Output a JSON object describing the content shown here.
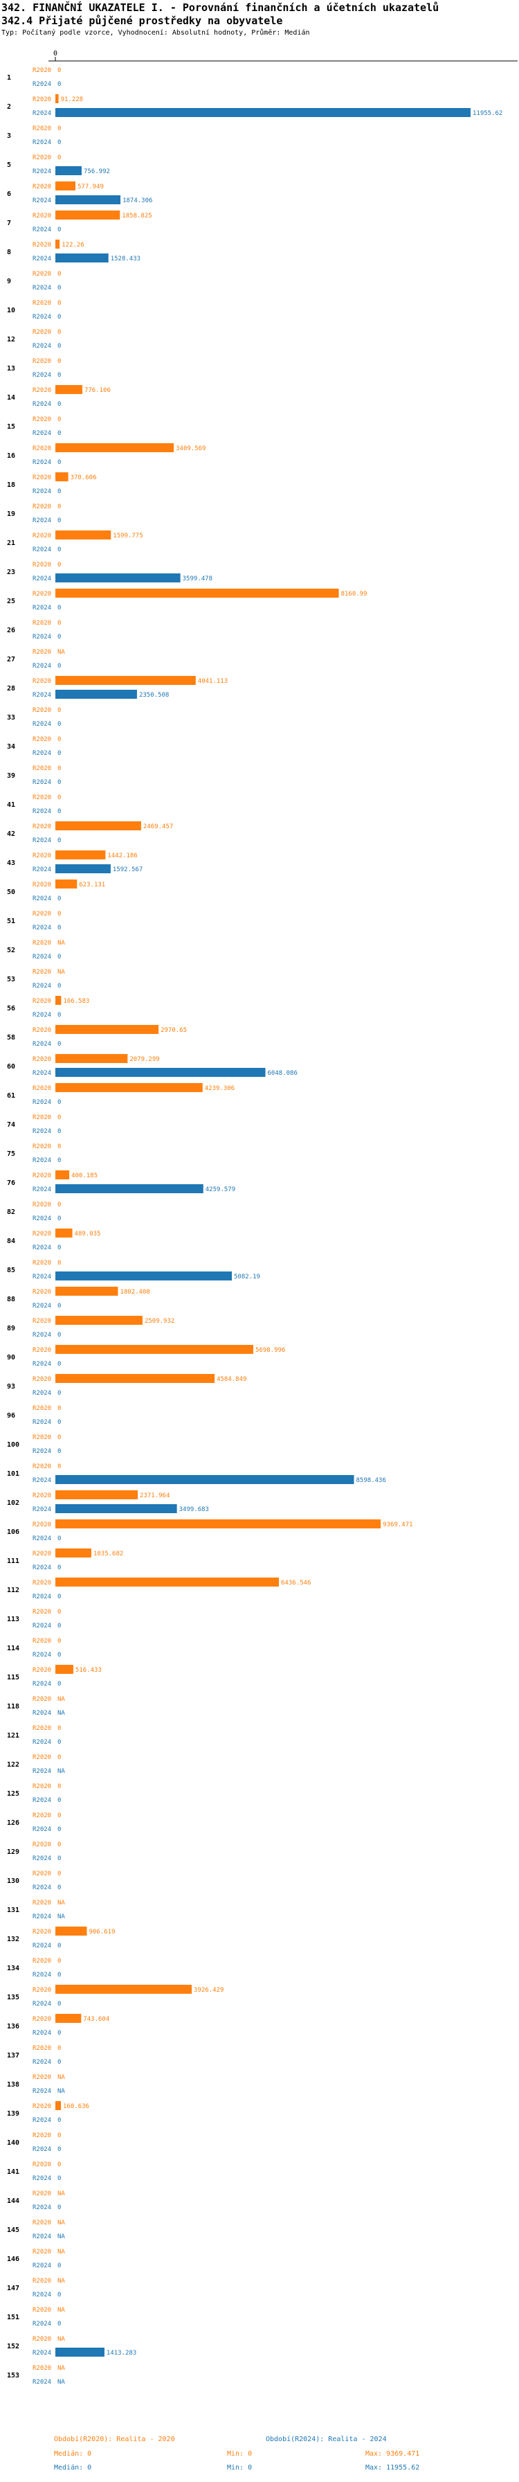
{
  "header": {
    "title": "342. FINANČNÍ UKAZATELE I. - Porovnání finančních a účetních ukazatelů",
    "subtitle": "342.4 Přijaté půjčené prostředky na obyvatele",
    "meta": "Typ: Počítaný podle vzorce, Vyhodnocení: Absolutní hodnoty, Průměr: Medián"
  },
  "colors": {
    "r2020": "#ff7f0e",
    "r2024": "#1f77b4"
  },
  "chart_data": {
    "type": "bar",
    "orientation": "horizontal",
    "x_axis_label": "0",
    "xlim": [
      0,
      11955.62
    ],
    "series_names": [
      "R2020",
      "R2024"
    ],
    "categories": [
      {
        "id": "1",
        "r2020": "0",
        "r2024": "0"
      },
      {
        "id": "2",
        "r2020": "91.228",
        "r2024": "11955.62"
      },
      {
        "id": "3",
        "r2020": "0",
        "r2024": "0"
      },
      {
        "id": "5",
        "r2020": "0",
        "r2024": "756.992"
      },
      {
        "id": "6",
        "r2020": "577.949",
        "r2024": "1874.306"
      },
      {
        "id": "7",
        "r2020": "1858.825",
        "r2024": "0"
      },
      {
        "id": "8",
        "r2020": "122.26",
        "r2024": "1528.433"
      },
      {
        "id": "9",
        "r2020": "0",
        "r2024": "0"
      },
      {
        "id": "10",
        "r2020": "0",
        "r2024": "0"
      },
      {
        "id": "12",
        "r2020": "0",
        "r2024": "0"
      },
      {
        "id": "13",
        "r2020": "0",
        "r2024": "0"
      },
      {
        "id": "14",
        "r2020": "776.106",
        "r2024": "0"
      },
      {
        "id": "15",
        "r2020": "0",
        "r2024": "0"
      },
      {
        "id": "16",
        "r2020": "3409.569",
        "r2024": "0"
      },
      {
        "id": "18",
        "r2020": "370.606",
        "r2024": "0"
      },
      {
        "id": "19",
        "r2020": "0",
        "r2024": "0"
      },
      {
        "id": "21",
        "r2020": "1599.775",
        "r2024": "0"
      },
      {
        "id": "23",
        "r2020": "0",
        "r2024": "3599.478"
      },
      {
        "id": "25",
        "r2020": "8160.99",
        "r2024": "0"
      },
      {
        "id": "26",
        "r2020": "0",
        "r2024": "0"
      },
      {
        "id": "27",
        "r2020": "NA",
        "r2024": "0"
      },
      {
        "id": "28",
        "r2020": "4041.113",
        "r2024": "2350.508"
      },
      {
        "id": "33",
        "r2020": "0",
        "r2024": "0"
      },
      {
        "id": "34",
        "r2020": "0",
        "r2024": "0"
      },
      {
        "id": "39",
        "r2020": "0",
        "r2024": "0"
      },
      {
        "id": "41",
        "r2020": "0",
        "r2024": "0"
      },
      {
        "id": "42",
        "r2020": "2469.457",
        "r2024": "0"
      },
      {
        "id": "43",
        "r2020": "1442.186",
        "r2024": "1592.567"
      },
      {
        "id": "50",
        "r2020": "623.131",
        "r2024": "0"
      },
      {
        "id": "51",
        "r2020": "0",
        "r2024": "0"
      },
      {
        "id": "52",
        "r2020": "NA",
        "r2024": "0"
      },
      {
        "id": "53",
        "r2020": "NA",
        "r2024": "0"
      },
      {
        "id": "56",
        "r2020": "166.583",
        "r2024": "0"
      },
      {
        "id": "58",
        "r2020": "2970.65",
        "r2024": "0"
      },
      {
        "id": "60",
        "r2020": "2079.299",
        "r2024": "6048.086"
      },
      {
        "id": "61",
        "r2020": "4239.306",
        "r2024": "0"
      },
      {
        "id": "74",
        "r2020": "0",
        "r2024": "0"
      },
      {
        "id": "75",
        "r2020": "0",
        "r2024": "0"
      },
      {
        "id": "76",
        "r2020": "400.185",
        "r2024": "4259.579"
      },
      {
        "id": "82",
        "r2020": "0",
        "r2024": "0"
      },
      {
        "id": "84",
        "r2020": "489.035",
        "r2024": "0"
      },
      {
        "id": "85",
        "r2020": "0",
        "r2024": "5082.19"
      },
      {
        "id": "88",
        "r2020": "1802.408",
        "r2024": "0"
      },
      {
        "id": "89",
        "r2020": "2509.932",
        "r2024": "0"
      },
      {
        "id": "90",
        "r2020": "5698.996",
        "r2024": "0"
      },
      {
        "id": "93",
        "r2020": "4584.849",
        "r2024": "0"
      },
      {
        "id": "96",
        "r2020": "0",
        "r2024": "0"
      },
      {
        "id": "100",
        "r2020": "0",
        "r2024": "0"
      },
      {
        "id": "101",
        "r2020": "0",
        "r2024": "8598.436"
      },
      {
        "id": "102",
        "r2020": "2371.964",
        "r2024": "3499.683"
      },
      {
        "id": "106",
        "r2020": "9369.471",
        "r2024": "0"
      },
      {
        "id": "111",
        "r2020": "1035.682",
        "r2024": "0"
      },
      {
        "id": "112",
        "r2020": "6436.546",
        "r2024": "0"
      },
      {
        "id": "113",
        "r2020": "0",
        "r2024": "0"
      },
      {
        "id": "114",
        "r2020": "0",
        "r2024": "0"
      },
      {
        "id": "115",
        "r2020": "516.433",
        "r2024": "0"
      },
      {
        "id": "118",
        "r2020": "NA",
        "r2024": "NA"
      },
      {
        "id": "121",
        "r2020": "0",
        "r2024": "0"
      },
      {
        "id": "122",
        "r2020": "0",
        "r2024": "NA"
      },
      {
        "id": "125",
        "r2020": "0",
        "r2024": "0"
      },
      {
        "id": "126",
        "r2020": "0",
        "r2024": "0"
      },
      {
        "id": "129",
        "r2020": "0",
        "r2024": "0"
      },
      {
        "id": "130",
        "r2020": "0",
        "r2024": "0"
      },
      {
        "id": "131",
        "r2020": "NA",
        "r2024": "NA"
      },
      {
        "id": "132",
        "r2020": "906.619",
        "r2024": "0"
      },
      {
        "id": "134",
        "r2020": "0",
        "r2024": "0"
      },
      {
        "id": "135",
        "r2020": "3926.429",
        "r2024": "0"
      },
      {
        "id": "136",
        "r2020": "743.604",
        "r2024": "0"
      },
      {
        "id": "137",
        "r2020": "0",
        "r2024": "0"
      },
      {
        "id": "138",
        "r2020": "NA",
        "r2024": "NA"
      },
      {
        "id": "139",
        "r2020": "160.636",
        "r2024": "0"
      },
      {
        "id": "140",
        "r2020": "0",
        "r2024": "0"
      },
      {
        "id": "141",
        "r2020": "0",
        "r2024": "0"
      },
      {
        "id": "144",
        "r2020": "NA",
        "r2024": "0"
      },
      {
        "id": "145",
        "r2020": "NA",
        "r2024": "NA"
      },
      {
        "id": "146",
        "r2020": "NA",
        "r2024": "0"
      },
      {
        "id": "147",
        "r2020": "NA",
        "r2024": "0"
      },
      {
        "id": "151",
        "r2020": "NA",
        "r2024": "0"
      },
      {
        "id": "152",
        "r2020": "NA",
        "r2024": "1413.283"
      },
      {
        "id": "153",
        "r2020": "NA",
        "r2024": "NA"
      }
    ]
  },
  "footer": {
    "legend_2020": "Období(R2020): Realita - 2020",
    "legend_2024": "Období(R2024): Realita - 2024",
    "median_2020": "Medián: 0",
    "min_2020": "Min: 0",
    "max_2020": "Max: 9369.471",
    "median_2024": "Medián: 0",
    "min_2024": "Min: 0",
    "max_2024": "Max: 11955.62"
  }
}
